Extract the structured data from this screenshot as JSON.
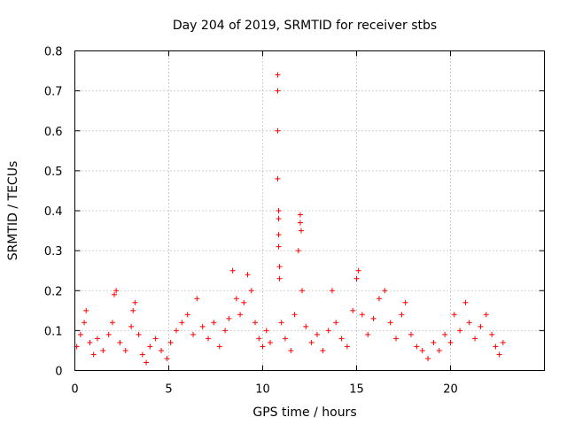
{
  "chart_data": {
    "type": "scatter",
    "title": "Day 204 of 2019, SRMTID for receiver stbs",
    "xlabel": "GPS time / hours",
    "ylabel": "SRMTID / TECUs",
    "xlim": [
      0,
      25
    ],
    "ylim": [
      0,
      0.8
    ],
    "x_ticks": [
      0,
      5,
      10,
      15,
      20
    ],
    "x_tick_labels": [
      "0",
      "5",
      "10",
      "15",
      "20"
    ],
    "y_ticks": [
      0,
      0.1,
      0.2,
      0.3,
      0.4,
      0.5,
      0.6,
      0.7,
      0.8
    ],
    "y_tick_labels": [
      "0",
      "0.1",
      "0.2",
      "0.3",
      "0.4",
      "0.5",
      "0.6",
      "0.7",
      "0.8"
    ],
    "grid": true,
    "marker": "+",
    "color": "#ff0000",
    "series": [
      {
        "name": "SRMTID",
        "points": [
          [
            0.1,
            0.06
          ],
          [
            0.3,
            0.09
          ],
          [
            0.5,
            0.12
          ],
          [
            0.6,
            0.15
          ],
          [
            0.8,
            0.07
          ],
          [
            1.0,
            0.04
          ],
          [
            1.2,
            0.08
          ],
          [
            1.5,
            0.05
          ],
          [
            1.8,
            0.09
          ],
          [
            2.0,
            0.12
          ],
          [
            2.1,
            0.19
          ],
          [
            2.2,
            0.2
          ],
          [
            2.4,
            0.07
          ],
          [
            2.7,
            0.05
          ],
          [
            3.0,
            0.11
          ],
          [
            3.1,
            0.15
          ],
          [
            3.2,
            0.17
          ],
          [
            3.4,
            0.09
          ],
          [
            3.6,
            0.04
          ],
          [
            3.8,
            0.02
          ],
          [
            4.0,
            0.06
          ],
          [
            4.3,
            0.08
          ],
          [
            4.6,
            0.05
          ],
          [
            4.9,
            0.03
          ],
          [
            5.1,
            0.07
          ],
          [
            5.4,
            0.1
          ],
          [
            5.7,
            0.12
          ],
          [
            6.0,
            0.14
          ],
          [
            6.3,
            0.09
          ],
          [
            6.5,
            0.18
          ],
          [
            6.8,
            0.11
          ],
          [
            7.1,
            0.08
          ],
          [
            7.4,
            0.12
          ],
          [
            7.7,
            0.06
          ],
          [
            8.0,
            0.1
          ],
          [
            8.2,
            0.13
          ],
          [
            8.4,
            0.25
          ],
          [
            8.6,
            0.18
          ],
          [
            8.8,
            0.14
          ],
          [
            9.0,
            0.17
          ],
          [
            9.2,
            0.24
          ],
          [
            9.4,
            0.2
          ],
          [
            9.6,
            0.12
          ],
          [
            9.8,
            0.08
          ],
          [
            10.0,
            0.06
          ],
          [
            10.2,
            0.1
          ],
          [
            10.4,
            0.07
          ],
          [
            10.8,
            0.74
          ],
          [
            10.8,
            0.7
          ],
          [
            10.8,
            0.6
          ],
          [
            10.8,
            0.48
          ],
          [
            10.85,
            0.4
          ],
          [
            10.85,
            0.38
          ],
          [
            10.85,
            0.34
          ],
          [
            10.85,
            0.31
          ],
          [
            10.9,
            0.26
          ],
          [
            10.9,
            0.23
          ],
          [
            11.0,
            0.12
          ],
          [
            11.2,
            0.08
          ],
          [
            11.5,
            0.05
          ],
          [
            11.7,
            0.14
          ],
          [
            11.9,
            0.3
          ],
          [
            12.0,
            0.39
          ],
          [
            12.0,
            0.37
          ],
          [
            12.05,
            0.35
          ],
          [
            12.1,
            0.2
          ],
          [
            12.3,
            0.11
          ],
          [
            12.6,
            0.07
          ],
          [
            12.9,
            0.09
          ],
          [
            13.2,
            0.05
          ],
          [
            13.5,
            0.1
          ],
          [
            13.7,
            0.2
          ],
          [
            13.9,
            0.12
          ],
          [
            14.2,
            0.08
          ],
          [
            14.5,
            0.06
          ],
          [
            14.8,
            0.15
          ],
          [
            15.0,
            0.23
          ],
          [
            15.1,
            0.25
          ],
          [
            15.3,
            0.14
          ],
          [
            15.6,
            0.09
          ],
          [
            15.9,
            0.13
          ],
          [
            16.2,
            0.18
          ],
          [
            16.5,
            0.2
          ],
          [
            16.8,
            0.12
          ],
          [
            17.1,
            0.08
          ],
          [
            17.4,
            0.14
          ],
          [
            17.6,
            0.17
          ],
          [
            17.9,
            0.09
          ],
          [
            18.2,
            0.06
          ],
          [
            18.5,
            0.05
          ],
          [
            18.8,
            0.03
          ],
          [
            19.1,
            0.07
          ],
          [
            19.4,
            0.05
          ],
          [
            19.7,
            0.09
          ],
          [
            20.0,
            0.07
          ],
          [
            20.2,
            0.14
          ],
          [
            20.5,
            0.1
          ],
          [
            20.8,
            0.17
          ],
          [
            21.0,
            0.12
          ],
          [
            21.3,
            0.08
          ],
          [
            21.6,
            0.11
          ],
          [
            21.9,
            0.14
          ],
          [
            22.2,
            0.09
          ],
          [
            22.4,
            0.06
          ],
          [
            22.6,
            0.04
          ],
          [
            22.8,
            0.07
          ]
        ]
      }
    ]
  }
}
